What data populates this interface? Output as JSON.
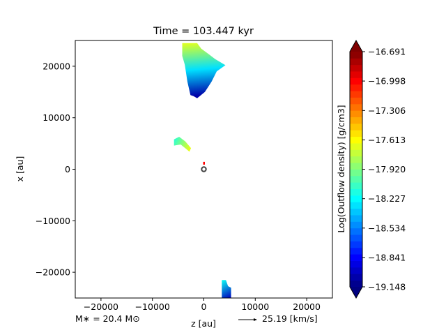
{
  "chart_data": {
    "type": "heatmap",
    "title": "Time = 103.447 kyr",
    "xlabel": "z [au]",
    "ylabel": "x [au]",
    "xlim": [
      -25000,
      25000
    ],
    "ylim": [
      -25000,
      25000
    ],
    "x_ticks": [
      -20000,
      -10000,
      0,
      10000,
      20000
    ],
    "x_tick_labels": [
      "−20000",
      "−10000",
      "0",
      "10000",
      "20000"
    ],
    "y_ticks": [
      20000,
      10000,
      0,
      -10000,
      -20000
    ],
    "y_tick_labels": [
      "20000",
      "10000",
      "0",
      "−10000",
      "−20000"
    ],
    "grid": false,
    "colorbar": {
      "label": "Log(Outflow density) [g/cm3]",
      "min": -19.148,
      "max": -16.691,
      "colormap": "jet",
      "levels": 36,
      "ticks": [
        -16.691,
        -16.998,
        -17.306,
        -17.613,
        -17.92,
        -18.227,
        -18.534,
        -18.841,
        -19.148
      ],
      "tick_labels": [
        "−16.691",
        "−16.998",
        "−17.306",
        "−17.613",
        "−17.920",
        "−18.227",
        "−18.534",
        "−18.841",
        "−19.148"
      ]
    },
    "regions": [
      {
        "polygon": [
          [
            -4200,
            24500
          ],
          [
            -1300,
            24500
          ],
          [
            -500,
            23400
          ],
          [
            1000,
            22300
          ],
          [
            2200,
            21400
          ],
          [
            4200,
            20200
          ],
          [
            2500,
            19000
          ],
          [
            1500,
            17000
          ],
          [
            200,
            15000
          ],
          [
            -1300,
            13800
          ],
          [
            -2000,
            14200
          ],
          [
            -2600,
            14400
          ],
          [
            -3200,
            17000
          ],
          [
            -3700,
            20300
          ],
          [
            -4200,
            22000
          ]
        ],
        "gradient": [
          [
            -1300,
            24500,
            -17.7
          ],
          [
            1800,
            19500,
            -18.3
          ],
          [
            -500,
            14300,
            -19.05
          ]
        ]
      },
      {
        "polygon": [
          [
            -5800,
            5800
          ],
          [
            -4800,
            6300
          ],
          [
            -3600,
            5400
          ],
          [
            -2500,
            4100
          ],
          [
            -2800,
            3400
          ],
          [
            -3500,
            4000
          ],
          [
            -4500,
            4800
          ],
          [
            -5800,
            4600
          ]
        ],
        "gradient": [
          [
            -5800,
            5300,
            -18.1
          ],
          [
            -2600,
            3800,
            -17.65
          ]
        ]
      },
      {
        "polygon": [
          [
            3500,
            -21500
          ],
          [
            4300,
            -21500
          ],
          [
            4700,
            -22700
          ],
          [
            5300,
            -23000
          ],
          [
            5300,
            -25000
          ],
          [
            3500,
            -25000
          ]
        ],
        "gradient": [
          [
            3500,
            -21500,
            -18.2
          ],
          [
            5300,
            -25000,
            -19.0
          ]
        ]
      }
    ],
    "markers": [
      {
        "name": "sink-particle",
        "x": 0,
        "y": 0
      },
      {
        "name": "sink-feature",
        "x": 0,
        "y": 1100,
        "value": -17.0
      }
    ],
    "annotations": {
      "stellar_mass": "M$_*$ = 20.4 M$_\\odot$",
      "stellar_mass_display": "M∗ = 20.4 M⊙",
      "velocity_reference": "25.19 [km/s]"
    }
  }
}
